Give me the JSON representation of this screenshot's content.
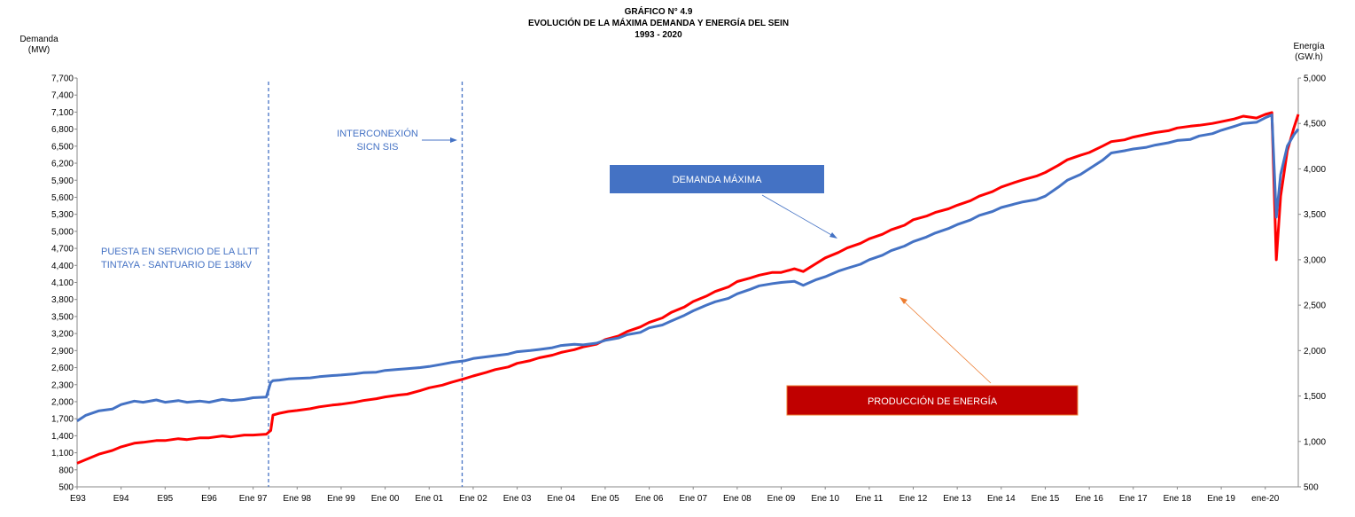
{
  "chart_data": {
    "type": "line",
    "title": "GRÁFICO N° 4.9",
    "subtitle": "EVOLUCIÓN DE LA MÁXIMA  DEMANDA Y ENERGÍA DEL SEIN",
    "period": "1993 - 2020",
    "y_left_label": [
      "Demanda",
      "(MW)"
    ],
    "y_right_label": [
      "Energía",
      "(GW.h)"
    ],
    "y_left_lim": [
      500,
      7700
    ],
    "y_left_ticks": [
      "500",
      "800",
      "1,100",
      "1,400",
      "1,700",
      "2,000",
      "2,300",
      "2,600",
      "2,900",
      "3,200",
      "3,500",
      "3,800",
      "4,100",
      "4,400",
      "4,700",
      "5,000",
      "5,300",
      "5,600",
      "5,900",
      "6,200",
      "6,500",
      "6,800",
      "7,100",
      "7,400",
      "7,700"
    ],
    "y_right_lim": [
      500,
      5000
    ],
    "y_right_ticks": [
      "500",
      "1,000",
      "1,500",
      "2,000",
      "2,500",
      "3,000",
      "3,500",
      "4,000",
      "4,500",
      "5,000"
    ],
    "x_lim": [
      1993.0,
      2020.75
    ],
    "x_ticks": [
      {
        "label": "E93",
        "x": 1993.0
      },
      {
        "label": "E94",
        "x": 1994.0
      },
      {
        "label": "E95",
        "x": 1995.0
      },
      {
        "label": "E96",
        "x": 1996.0
      },
      {
        "label": "Ene 97",
        "x": 1997.0
      },
      {
        "label": "Ene 98",
        "x": 1998.0
      },
      {
        "label": "Ene 99",
        "x": 1999.0
      },
      {
        "label": "Ene 00",
        "x": 2000.0
      },
      {
        "label": "Ene 01",
        "x": 2001.0
      },
      {
        "label": "Ene 02",
        "x": 2002.0
      },
      {
        "label": "Ene 03",
        "x": 2003.0
      },
      {
        "label": "Ene 04",
        "x": 2004.0
      },
      {
        "label": "Ene 05",
        "x": 2005.0
      },
      {
        "label": "Ene 06",
        "x": 2006.0
      },
      {
        "label": "Ene 07",
        "x": 2007.0
      },
      {
        "label": "Ene 08",
        "x": 2008.0
      },
      {
        "label": "Ene 09",
        "x": 2009.0
      },
      {
        "label": "Ene 10",
        "x": 2010.0
      },
      {
        "label": "Ene 11",
        "x": 2011.0
      },
      {
        "label": "Ene 12",
        "x": 2012.0
      },
      {
        "label": "Ene 13",
        "x": 2013.0
      },
      {
        "label": "Ene 14",
        "x": 2014.0
      },
      {
        "label": "Ene 15",
        "x": 2015.0
      },
      {
        "label": "Ene 16",
        "x": 2016.0
      },
      {
        "label": "Ene 17",
        "x": 2017.0
      },
      {
        "label": "Ene 18",
        "x": 2018.0
      },
      {
        "label": "Ene 19",
        "x": 2019.0
      },
      {
        "label": "ene-20",
        "x": 2020.0
      }
    ],
    "series": [
      {
        "name": "DEMANDA MÁXIMA",
        "axis": "left",
        "color": "#4472C4",
        "x": [
          1993.0,
          1993.2,
          1993.5,
          1993.8,
          1994.0,
          1994.3,
          1994.5,
          1994.8,
          1995.0,
          1995.3,
          1995.5,
          1995.8,
          1996.0,
          1996.3,
          1996.5,
          1996.8,
          1997.0,
          1997.3,
          1997.4,
          1997.45,
          1997.6,
          1997.8,
          1998.0,
          1998.3,
          1998.5,
          1998.8,
          1999.0,
          1999.3,
          1999.5,
          1999.8,
          2000.0,
          2000.3,
          2000.5,
          2000.8,
          2001.0,
          2001.3,
          2001.5,
          2001.8,
          2002.0,
          2002.3,
          2002.5,
          2002.8,
          2003.0,
          2003.3,
          2003.5,
          2003.8,
          2004.0,
          2004.3,
          2004.5,
          2004.8,
          2005.0,
          2005.3,
          2005.5,
          2005.8,
          2006.0,
          2006.3,
          2006.5,
          2006.8,
          2007.0,
          2007.3,
          2007.5,
          2007.8,
          2008.0,
          2008.3,
          2008.5,
          2008.8,
          2009.0,
          2009.3,
          2009.5,
          2009.8,
          2010.0,
          2010.3,
          2010.5,
          2010.8,
          2011.0,
          2011.3,
          2011.5,
          2011.8,
          2012.0,
          2012.3,
          2012.5,
          2012.8,
          2013.0,
          2013.3,
          2013.5,
          2013.8,
          2014.0,
          2014.3,
          2014.5,
          2014.8,
          2015.0,
          2015.3,
          2015.5,
          2015.8,
          2016.0,
          2016.3,
          2016.5,
          2016.8,
          2017.0,
          2017.3,
          2017.5,
          2017.8,
          2018.0,
          2018.3,
          2018.5,
          2018.8,
          2019.0,
          2019.3,
          2019.5,
          2019.8,
          2020.0,
          2020.15,
          2020.25,
          2020.35,
          2020.5,
          2020.65,
          2020.75
        ],
        "y": [
          1660,
          1760,
          1840,
          1870,
          1950,
          2010,
          1990,
          2030,
          1990,
          2020,
          1990,
          2010,
          1990,
          2040,
          2020,
          2040,
          2070,
          2080,
          2340,
          2370,
          2380,
          2400,
          2410,
          2420,
          2440,
          2460,
          2470,
          2490,
          2510,
          2520,
          2550,
          2570,
          2580,
          2600,
          2620,
          2660,
          2690,
          2720,
          2760,
          2790,
          2810,
          2840,
          2880,
          2900,
          2920,
          2950,
          2990,
          3010,
          3000,
          3030,
          3080,
          3120,
          3180,
          3220,
          3300,
          3350,
          3420,
          3520,
          3600,
          3700,
          3760,
          3820,
          3900,
          3980,
          4040,
          4080,
          4100,
          4120,
          4050,
          4150,
          4200,
          4300,
          4350,
          4420,
          4500,
          4580,
          4660,
          4740,
          4820,
          4900,
          4970,
          5050,
          5120,
          5200,
          5280,
          5350,
          5420,
          5480,
          5520,
          5560,
          5620,
          5780,
          5900,
          6000,
          6100,
          6250,
          6380,
          6420,
          6450,
          6480,
          6520,
          6560,
          6600,
          6620,
          6680,
          6720,
          6780,
          6850,
          6900,
          6920,
          7000,
          7050,
          5250,
          6000,
          6500,
          6700,
          6800
        ]
      },
      {
        "name": "PRODUCCIÓN DE ENERGÍA",
        "axis": "right",
        "color": "#FF0000",
        "x": [
          1993.0,
          1993.2,
          1993.5,
          1993.8,
          1994.0,
          1994.3,
          1994.5,
          1994.8,
          1995.0,
          1995.3,
          1995.5,
          1995.8,
          1996.0,
          1996.3,
          1996.5,
          1996.8,
          1997.0,
          1997.3,
          1997.4,
          1997.45,
          1997.6,
          1997.8,
          1998.0,
          1998.3,
          1998.5,
          1998.8,
          1999.0,
          1999.3,
          1999.5,
          1999.8,
          2000.0,
          2000.3,
          2000.5,
          2000.8,
          2001.0,
          2001.3,
          2001.5,
          2001.8,
          2002.0,
          2002.3,
          2002.5,
          2002.8,
          2003.0,
          2003.3,
          2003.5,
          2003.8,
          2004.0,
          2004.3,
          2004.5,
          2004.8,
          2005.0,
          2005.3,
          2005.5,
          2005.8,
          2006.0,
          2006.3,
          2006.5,
          2006.8,
          2007.0,
          2007.3,
          2007.5,
          2007.8,
          2008.0,
          2008.3,
          2008.5,
          2008.8,
          2009.0,
          2009.3,
          2009.5,
          2009.8,
          2010.0,
          2010.3,
          2010.5,
          2010.8,
          2011.0,
          2011.3,
          2011.5,
          2011.8,
          2012.0,
          2012.3,
          2012.5,
          2012.8,
          2013.0,
          2013.3,
          2013.5,
          2013.8,
          2014.0,
          2014.3,
          2014.5,
          2014.8,
          2015.0,
          2015.3,
          2015.5,
          2015.8,
          2016.0,
          2016.3,
          2016.5,
          2016.8,
          2017.0,
          2017.3,
          2017.5,
          2017.8,
          2018.0,
          2018.3,
          2018.5,
          2018.8,
          2019.0,
          2019.3,
          2019.5,
          2019.8,
          2020.0,
          2020.15,
          2020.25,
          2020.35,
          2020.5,
          2020.65,
          2020.75
        ],
        "y": [
          760,
          800,
          860,
          900,
          940,
          980,
          990,
          1010,
          1010,
          1030,
          1020,
          1040,
          1040,
          1060,
          1050,
          1070,
          1070,
          1080,
          1120,
          1290,
          1310,
          1330,
          1340,
          1360,
          1380,
          1400,
          1410,
          1430,
          1450,
          1470,
          1490,
          1510,
          1520,
          1560,
          1590,
          1620,
          1650,
          1690,
          1720,
          1760,
          1790,
          1820,
          1860,
          1890,
          1920,
          1950,
          1980,
          2010,
          2040,
          2070,
          2120,
          2160,
          2210,
          2260,
          2310,
          2360,
          2420,
          2480,
          2540,
          2600,
          2650,
          2700,
          2760,
          2800,
          2830,
          2860,
          2860,
          2900,
          2870,
          2960,
          3020,
          3080,
          3130,
          3180,
          3230,
          3280,
          3330,
          3380,
          3440,
          3480,
          3520,
          3560,
          3600,
          3650,
          3700,
          3750,
          3800,
          3850,
          3880,
          3920,
          3960,
          4040,
          4100,
          4150,
          4180,
          4250,
          4300,
          4320,
          4350,
          4380,
          4400,
          4420,
          4450,
          4470,
          4480,
          4500,
          4520,
          4550,
          4580,
          4560,
          4600,
          4620,
          3000,
          3700,
          4200,
          4450,
          4600
        ]
      }
    ],
    "annotations": {
      "llttline": [
        "PUESTA EN SERVICIO DE LA  LLTT",
        "TINTAYA - SANTUARIO DE 138kV"
      ],
      "llttline_x": 1997.35,
      "sicn": [
        "INTERCONEXIÓN",
        "SICN SIS"
      ],
      "sicn_x": 2001.75,
      "demanda_box": "DEMANDA MÁXIMA",
      "demanda_box_color": "#4472C4",
      "energia_box": "PRODUCCIÓN DE ENERGÍA",
      "energia_box_color": "#C00000"
    }
  }
}
